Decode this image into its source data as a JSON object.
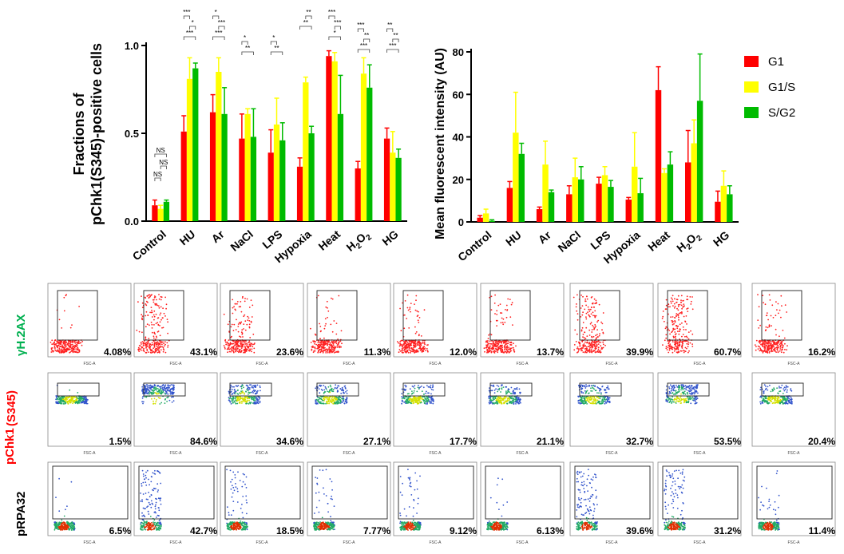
{
  "chart_data": [
    {
      "type": "bar",
      "ylabel_line1": "Fractions of",
      "ylabel_line2": "pChk1(S345)-positive cells",
      "ylim": [
        0,
        1.0
      ],
      "yticks": [
        "0.0",
        "0.5",
        "1.0"
      ],
      "categories": [
        "Control",
        "HU",
        "Ar",
        "NaCl",
        "LPS",
        "Hypoxia",
        "Heat",
        "H2O2",
        "HG"
      ],
      "series": [
        {
          "name": "G1",
          "color": "#ff0000",
          "values": [
            0.09,
            0.51,
            0.62,
            0.47,
            0.39,
            0.31,
            0.94,
            0.3,
            0.47
          ],
          "errors": [
            0.03,
            0.09,
            0.1,
            0.14,
            0.13,
            0.05,
            0.03,
            0.04,
            0.06
          ]
        },
        {
          "name": "G1/S",
          "color": "#ffff00",
          "values": [
            0.07,
            0.81,
            0.85,
            0.61,
            0.55,
            0.79,
            0.91,
            0.84,
            0.39
          ],
          "errors": [
            0.02,
            0.12,
            0.08,
            0.03,
            0.15,
            0.03,
            0.05,
            0.09,
            0.12
          ]
        },
        {
          "name": "S/G2",
          "color": "#00bb00",
          "values": [
            0.11,
            0.87,
            0.61,
            0.48,
            0.46,
            0.5,
            0.61,
            0.76,
            0.36
          ],
          "errors": [
            0.01,
            0.03,
            0.15,
            0.16,
            0.1,
            0.04,
            0.22,
            0.13,
            0.05
          ]
        }
      ],
      "significance": [
        "NS",
        "*",
        "**",
        "***"
      ]
    },
    {
      "type": "bar",
      "ylabel": "Mean fluorescent intensity (AU)",
      "ylim": [
        0,
        80
      ],
      "yticks": [
        "0",
        "20",
        "40",
        "60",
        "80"
      ],
      "categories": [
        "Control",
        "HU",
        "Ar",
        "NaCl",
        "LPS",
        "Hypoxia",
        "Heat",
        "H2O2",
        "HG"
      ],
      "series": [
        {
          "name": "G1",
          "color": "#ff0000",
          "values": [
            2,
            16,
            6,
            13,
            18,
            10.5,
            62,
            28,
            9.5
          ],
          "errors": [
            1,
            3,
            1,
            4,
            3,
            1,
            11,
            15,
            5
          ]
        },
        {
          "name": "G1/S",
          "color": "#ffff00",
          "values": [
            4,
            42,
            27,
            21,
            22,
            26,
            23,
            37,
            17
          ],
          "errors": [
            2,
            19,
            11,
            9,
            4,
            16,
            2,
            11,
            7
          ]
        },
        {
          "name": "S/G2",
          "color": "#00bb00",
          "values": [
            0.5,
            32,
            14,
            20,
            16.5,
            13.5,
            27,
            57,
            13
          ],
          "errors": [
            0.5,
            5,
            1,
            6,
            3,
            7,
            6,
            22,
            4
          ]
        }
      ],
      "legend": [
        "G1",
        "G1/S",
        "S/G2"
      ]
    }
  ],
  "flow": {
    "rows": [
      {
        "label": "γH.2AX",
        "color": "#00b050",
        "values": [
          "4.08%",
          "43.1%",
          "23.6%",
          "11.3%",
          "12.0%",
          "13.7%",
          "39.9%",
          "60.7%",
          "16.2%"
        ]
      },
      {
        "label_line1": "pChk1",
        "label_line2": "(S345)",
        "color": "#ff0000",
        "values": [
          "1.5%",
          "84.6%",
          "34.6%",
          "27.1%",
          "17.7%",
          "21.1%",
          "32.7%",
          "53.5%",
          "20.4%"
        ]
      },
      {
        "label": "pRPA32",
        "color": "#000000",
        "values": [
          "6.5%",
          "42.7%",
          "18.5%",
          "7.77%",
          "9.12%",
          "6.13%",
          "39.6%",
          "31.2%",
          "11.4%"
        ]
      }
    ],
    "xlabel": "FSC-A"
  }
}
